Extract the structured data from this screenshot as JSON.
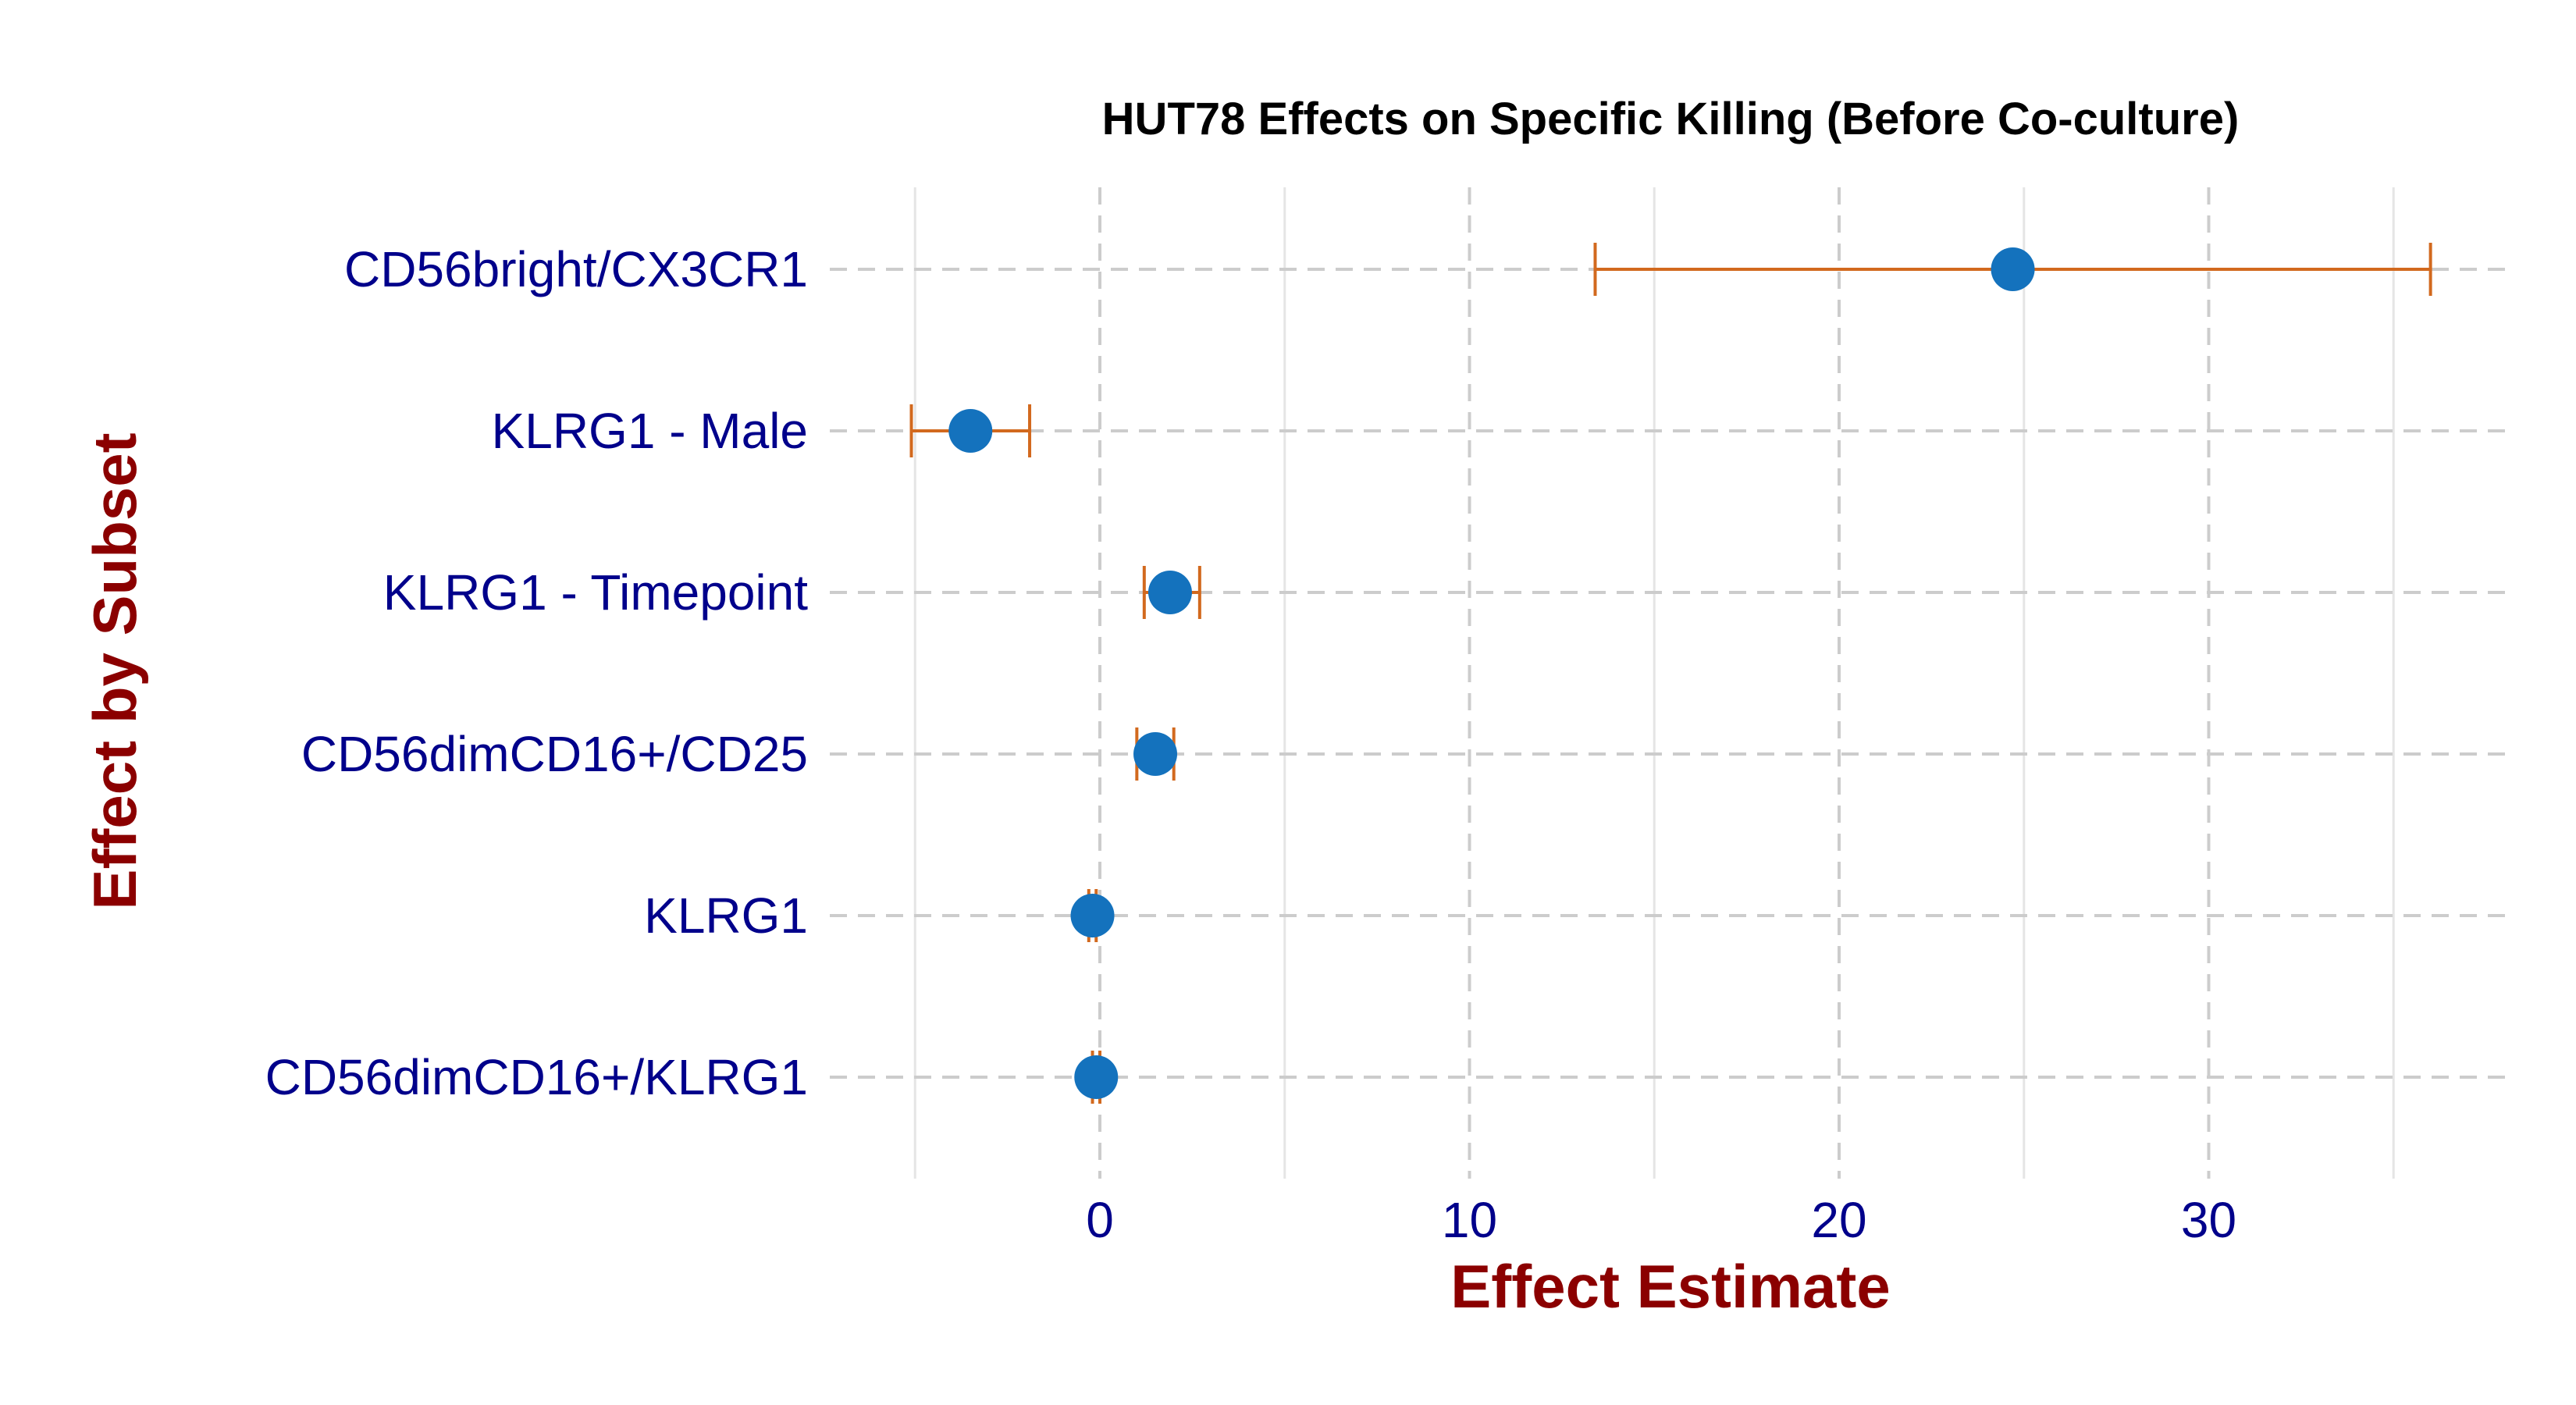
{
  "chart_data": {
    "type": "scatter",
    "title": "HUT78 Effects on Specific Killing (Before Co-culture)",
    "xlabel": "Effect Estimate",
    "ylabel": "Effect by Subset",
    "xlim": [
      -5,
      38
    ],
    "xticks": [
      0,
      10,
      20,
      30
    ],
    "grid": true,
    "categories": [
      "CD56bright/CX3CR1",
      "KLRG1 - Male",
      "KLRG1 - Timepoint",
      "CD56dimCD16+/CD25",
      "KLRG1",
      "CD56dimCD16+/KLRG1"
    ],
    "estimates": [
      24.7,
      -3.5,
      1.9,
      1.5,
      -0.2,
      -0.1
    ],
    "ci_lower": [
      13.4,
      -5.1,
      1.2,
      1.0,
      -0.3,
      -0.2
    ],
    "ci_upper": [
      36.0,
      -1.9,
      2.7,
      2.0,
      -0.1,
      0.0
    ]
  },
  "colors": {
    "point": "#1472BD",
    "errorbar": "#D2691E",
    "axis_title": "#8B0000",
    "tick_label": "#00008B",
    "grid_major": "#CCCCCC",
    "grid_minor": "#E5E5E5"
  }
}
